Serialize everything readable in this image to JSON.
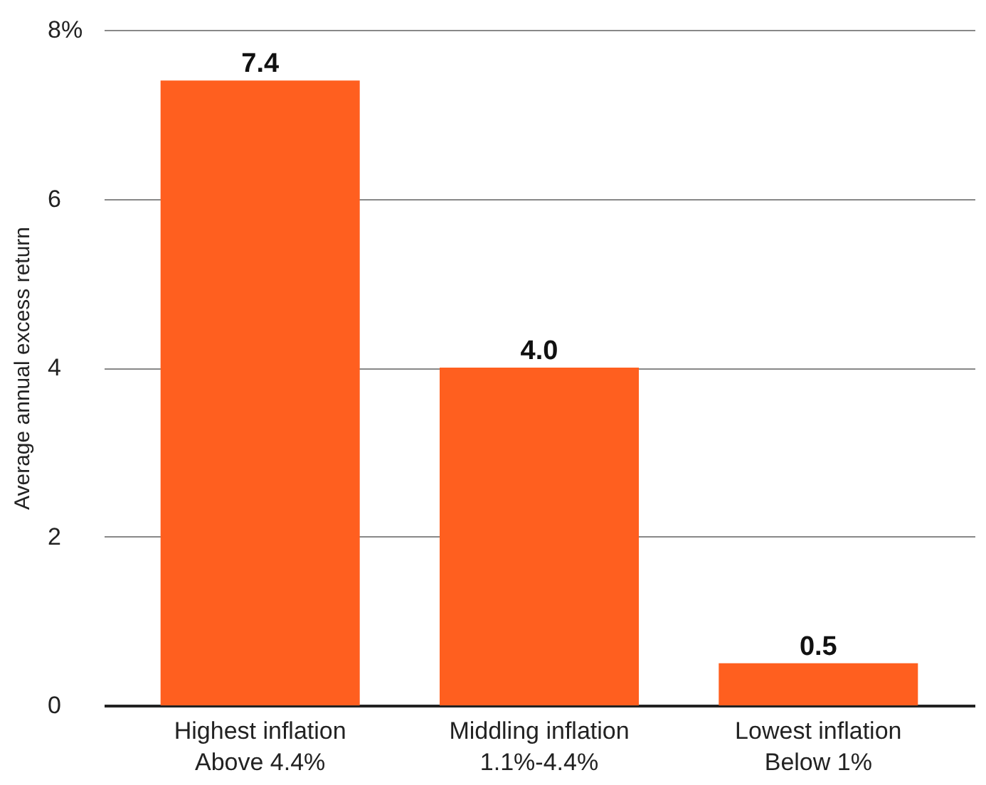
{
  "chart_data": {
    "type": "bar",
    "ylabel": "Average annual excess return",
    "categories": [
      "Highest inflation\nAbove 4.4%",
      "Middling inflation\n1.1%-4.4%",
      "Lowest inflation\nBelow 1%"
    ],
    "values": [
      7.4,
      4.0,
      0.5
    ],
    "color": "#ff5f1f",
    "value_labels": [
      "7.4",
      "4.0",
      "0.5"
    ],
    "ylim": [
      0,
      8
    ],
    "yticks": [
      0,
      2,
      4,
      6,
      {
        "value": 8,
        "label": "8%"
      }
    ],
    "grid": "y"
  }
}
